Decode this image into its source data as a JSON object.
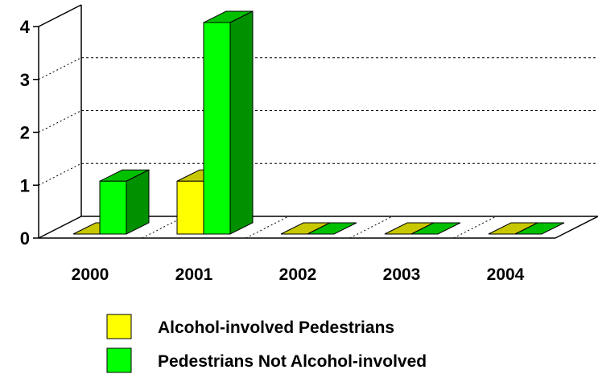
{
  "chart_data": {
    "type": "bar",
    "title": "",
    "xlabel": "",
    "ylabel": "",
    "categories": [
      "2000",
      "2001",
      "2002",
      "2003",
      "2004"
    ],
    "series": [
      {
        "name": "Alcohol-involved Pedestrians",
        "values": [
          0,
          1,
          0,
          0,
          0
        ],
        "colors": {
          "front": "#ffff00",
          "side": "#9a9a00",
          "top": "#c8c800"
        }
      },
      {
        "name": "Pedestrians Not Alcohol-involved",
        "values": [
          1,
          4,
          0,
          0,
          0
        ],
        "colors": {
          "front": "#00ff00",
          "side": "#009000",
          "top": "#00c000"
        }
      }
    ],
    "ylim": [
      0,
      4
    ],
    "yticks": [
      "0",
      "1",
      "2",
      "3",
      "4"
    ],
    "grid": true,
    "legend_position": "bottom",
    "style": "3d"
  }
}
